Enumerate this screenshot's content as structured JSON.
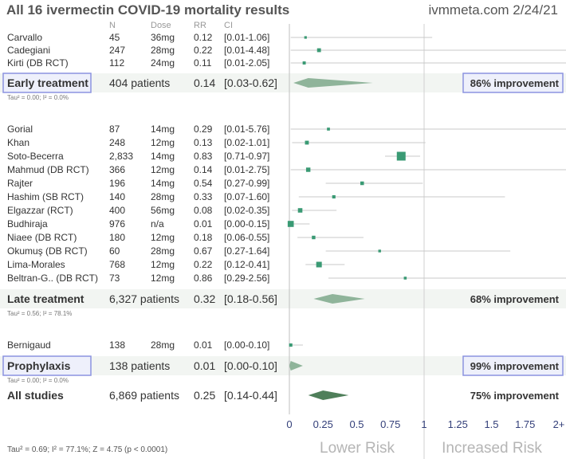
{
  "title": "All 16 ivermectin COVID-19 mortality results",
  "source": "ivmmeta.com 2/24/21",
  "columns": {
    "n": "N",
    "dose": "Dose",
    "rr": "RR",
    "ci": "CI"
  },
  "chart_data": {
    "type": "forest",
    "x_ticks": [
      "0",
      "0.25",
      "0.5",
      "0.75",
      "1",
      "1.25",
      "1.5",
      "1.75",
      "2+"
    ],
    "xlim": [
      0,
      2
    ],
    "x_label_left": "Lower Risk",
    "x_label_right": "Increased Risk",
    "groups": [
      {
        "studies": [
          {
            "name": "Carvallo",
            "n": "45",
            "dose": "36mg",
            "rr": 0.12,
            "rr_text": "0.12",
            "ci": [
              0.01,
              1.06
            ],
            "ci_text": "[0.01-1.06]"
          },
          {
            "name": "Cadegiani",
            "n": "247",
            "dose": "28mg",
            "rr": 0.22,
            "rr_text": "0.22",
            "ci": [
              0.01,
              4.48
            ],
            "ci_text": "[0.01-4.48]"
          },
          {
            "name": "Kirti (DB RCT)",
            "n": "112",
            "dose": "24mg",
            "rr": 0.11,
            "rr_text": "0.11",
            "ci": [
              0.01,
              2.05
            ],
            "ci_text": "[0.01-2.05]"
          }
        ],
        "summary": {
          "label": "Early treatment",
          "patients": "404 patients",
          "rr": 0.14,
          "rr_text": "0.14",
          "ci": [
            0.03,
            0.62
          ],
          "ci_text": "[0.03-0.62]",
          "improvement": "86% improvement",
          "boxed": true
        },
        "het": "Tau² = 0.00; I² = 0.0%"
      },
      {
        "studies": [
          {
            "name": "Gorial",
            "n": "87",
            "dose": "14mg",
            "rr": 0.29,
            "rr_text": "0.29",
            "ci": [
              0.01,
              5.76
            ],
            "ci_text": "[0.01-5.76]"
          },
          {
            "name": "Khan",
            "n": "248",
            "dose": "12mg",
            "rr": 0.13,
            "rr_text": "0.13",
            "ci": [
              0.02,
              1.01
            ],
            "ci_text": "[0.02-1.01]"
          },
          {
            "name": "Soto-Becerra",
            "n": "2,833",
            "dose": "14mg",
            "rr": 0.83,
            "rr_text": "0.83",
            "ci": [
              0.71,
              0.97
            ],
            "ci_text": "[0.71-0.97]"
          },
          {
            "name": "Mahmud (DB RCT)",
            "n": "366",
            "dose": "12mg",
            "rr": 0.14,
            "rr_text": "0.14",
            "ci": [
              0.01,
              2.75
            ],
            "ci_text": "[0.01-2.75]"
          },
          {
            "name": "Rajter",
            "n": "196",
            "dose": "14mg",
            "rr": 0.54,
            "rr_text": "0.54",
            "ci": [
              0.27,
              0.99
            ],
            "ci_text": "[0.27-0.99]"
          },
          {
            "name": "Hashim (SB RCT)",
            "n": "140",
            "dose": "28mg",
            "rr": 0.33,
            "rr_text": "0.33",
            "ci": [
              0.07,
              1.6
            ],
            "ci_text": "[0.07-1.60]"
          },
          {
            "name": "Elgazzar (RCT)",
            "n": "400",
            "dose": "56mg",
            "rr": 0.08,
            "rr_text": "0.08",
            "ci": [
              0.02,
              0.35
            ],
            "ci_text": "[0.02-0.35]"
          },
          {
            "name": "Budhiraja",
            "n": "976",
            "dose": "n/a",
            "rr": 0.01,
            "rr_text": "0.01",
            "ci": [
              0.0,
              0.15
            ],
            "ci_text": "[0.00-0.15]"
          },
          {
            "name": "Niaee (DB RCT)",
            "n": "180",
            "dose": "12mg",
            "rr": 0.18,
            "rr_text": "0.18",
            "ci": [
              0.06,
              0.55
            ],
            "ci_text": "[0.06-0.55]"
          },
          {
            "name": "Okumuş (DB RCT)",
            "n": "60",
            "dose": "28mg",
            "rr": 0.67,
            "rr_text": "0.67",
            "ci": [
              0.27,
              1.64
            ],
            "ci_text": "[0.27-1.64]"
          },
          {
            "name": "Lima-Morales",
            "n": "768",
            "dose": "12mg",
            "rr": 0.22,
            "rr_text": "0.22",
            "ci": [
              0.12,
              0.41
            ],
            "ci_text": "[0.12-0.41]"
          },
          {
            "name": "Beltran-G.. (DB RCT)",
            "n": "73",
            "dose": "12mg",
            "rr": 0.86,
            "rr_text": "0.86",
            "ci": [
              0.29,
              2.56
            ],
            "ci_text": "[0.29-2.56]"
          }
        ],
        "summary": {
          "label": "Late treatment",
          "patients": "6,327 patients",
          "rr": 0.32,
          "rr_text": "0.32",
          "ci": [
            0.18,
            0.56
          ],
          "ci_text": "[0.18-0.56]",
          "improvement": "68% improvement",
          "boxed": false
        },
        "het": "Tau² = 0.56; I² = 78.1%"
      },
      {
        "studies": [
          {
            "name": "Bernigaud",
            "n": "138",
            "dose": "28mg",
            "rr": 0.01,
            "rr_text": "0.01",
            "ci": [
              0.0,
              0.1
            ],
            "ci_text": "[0.00-0.10]"
          }
        ],
        "summary": {
          "label": "Prophylaxis",
          "patients": "138 patients",
          "rr": 0.01,
          "rr_text": "0.01",
          "ci": [
            0.0,
            0.1
          ],
          "ci_text": "[0.00-0.10]",
          "improvement": "99% improvement",
          "boxed": true
        },
        "het": "Tau² = 0.00; I² = 0.0%"
      }
    ],
    "overall": {
      "label": "All studies",
      "patients": "6,869 patients",
      "rr": 0.25,
      "rr_text": "0.25",
      "ci": [
        0.14,
        0.44
      ],
      "ci_text": "[0.14-0.44]",
      "improvement": "75% improvement"
    },
    "overall_het": "Tau² = 0.69; I² = 77.1%; Z = 4.75 (p < 0.0001)"
  },
  "colors": {
    "title": "#555555",
    "text": "#333333",
    "header": "#999999",
    "study_marker": "#3a9a74",
    "summary_diamond": "#8fb49a",
    "overall_diamond": "#4f7f5a",
    "band": "#f2f5f2",
    "box_fill": "#eef0fb",
    "box_border": "#8c93e0",
    "axis_text": "#34407a",
    "risk_label": "#b5b5b5"
  }
}
